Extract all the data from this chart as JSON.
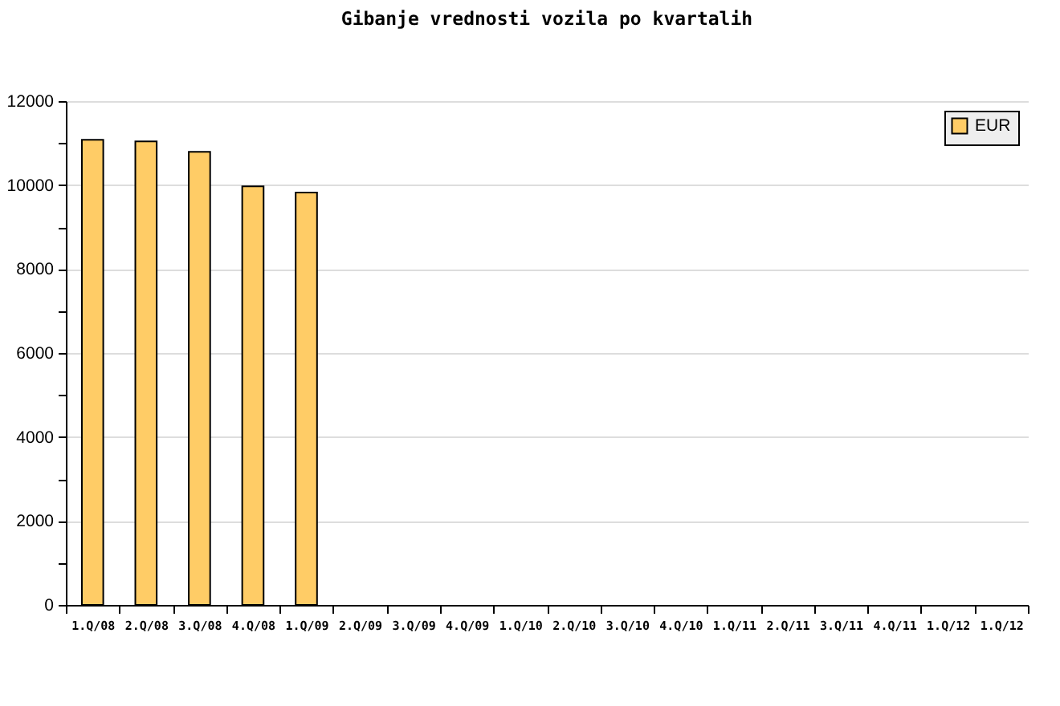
{
  "chart_data": {
    "type": "bar",
    "title": "Gibanje vrednosti vozila po kvartalih",
    "categories": [
      "1.Q/08",
      "2.Q/08",
      "3.Q/08",
      "4.Q/08",
      "1.Q/09",
      "2.Q/09",
      "3.Q/09",
      "4.Q/09",
      "1.Q/10",
      "2.Q/10",
      "3.Q/10",
      "4.Q/10",
      "1.Q/11",
      "2.Q/11",
      "3.Q/11",
      "4.Q/11",
      "1.Q/12",
      "1.Q/12"
    ],
    "series": [
      {
        "name": "EUR",
        "color": "#ffcc66",
        "values": [
          11080,
          11040,
          10790,
          9970,
          9820,
          null,
          null,
          null,
          null,
          null,
          null,
          null,
          null,
          null,
          null,
          null,
          null,
          null
        ]
      }
    ],
    "ylim": [
      0,
      12000
    ],
    "yticks": [
      0,
      {
        "value": 1000,
        "label": null
      },
      2000,
      {
        "value": 3000,
        "label": null
      },
      4000,
      {
        "value": 5000,
        "label": null
      },
      6000,
      {
        "value": 7000,
        "label": null
      },
      8000,
      {
        "value": 9000,
        "label": null
      },
      10000,
      {
        "value": 11000,
        "label": null
      },
      12000
    ],
    "grid": "y",
    "legend": "top right"
  }
}
